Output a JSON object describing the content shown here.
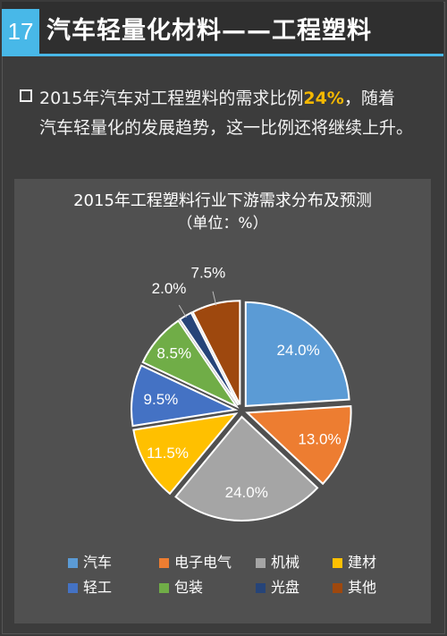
{
  "slide": {
    "number": "17",
    "title": "汽车轻量化材料——工程塑料"
  },
  "bullet": {
    "part1": "2015年汽车对工程塑料的需求比例",
    "highlight": "24%",
    "part2": "，随着",
    "line2": "汽车轻量化的发展趋势，这一比例还将继续上升。"
  },
  "chart_data": {
    "type": "pie",
    "title": "2015年工程塑料行业下游需求分布及预测",
    "subtitle": "（单位：%）",
    "categories": [
      "汽车",
      "电子电气",
      "机械",
      "建材",
      "轻工",
      "包装",
      "光盘",
      "其他"
    ],
    "values": [
      24.0,
      13.0,
      24.0,
      11.5,
      9.5,
      8.5,
      2.0,
      7.5
    ],
    "value_labels": [
      "24.0%",
      "13.0%",
      "24.0%",
      "11.5%",
      "9.5%",
      "8.5%",
      "2.0%",
      "7.5%"
    ],
    "colors": [
      "#5b9bd5",
      "#ed7d31",
      "#a5a5a5",
      "#ffc000",
      "#4472c4",
      "#70ad47",
      "#264478",
      "#9e480e"
    ],
    "legend_position": "bottom",
    "exploded": true
  }
}
